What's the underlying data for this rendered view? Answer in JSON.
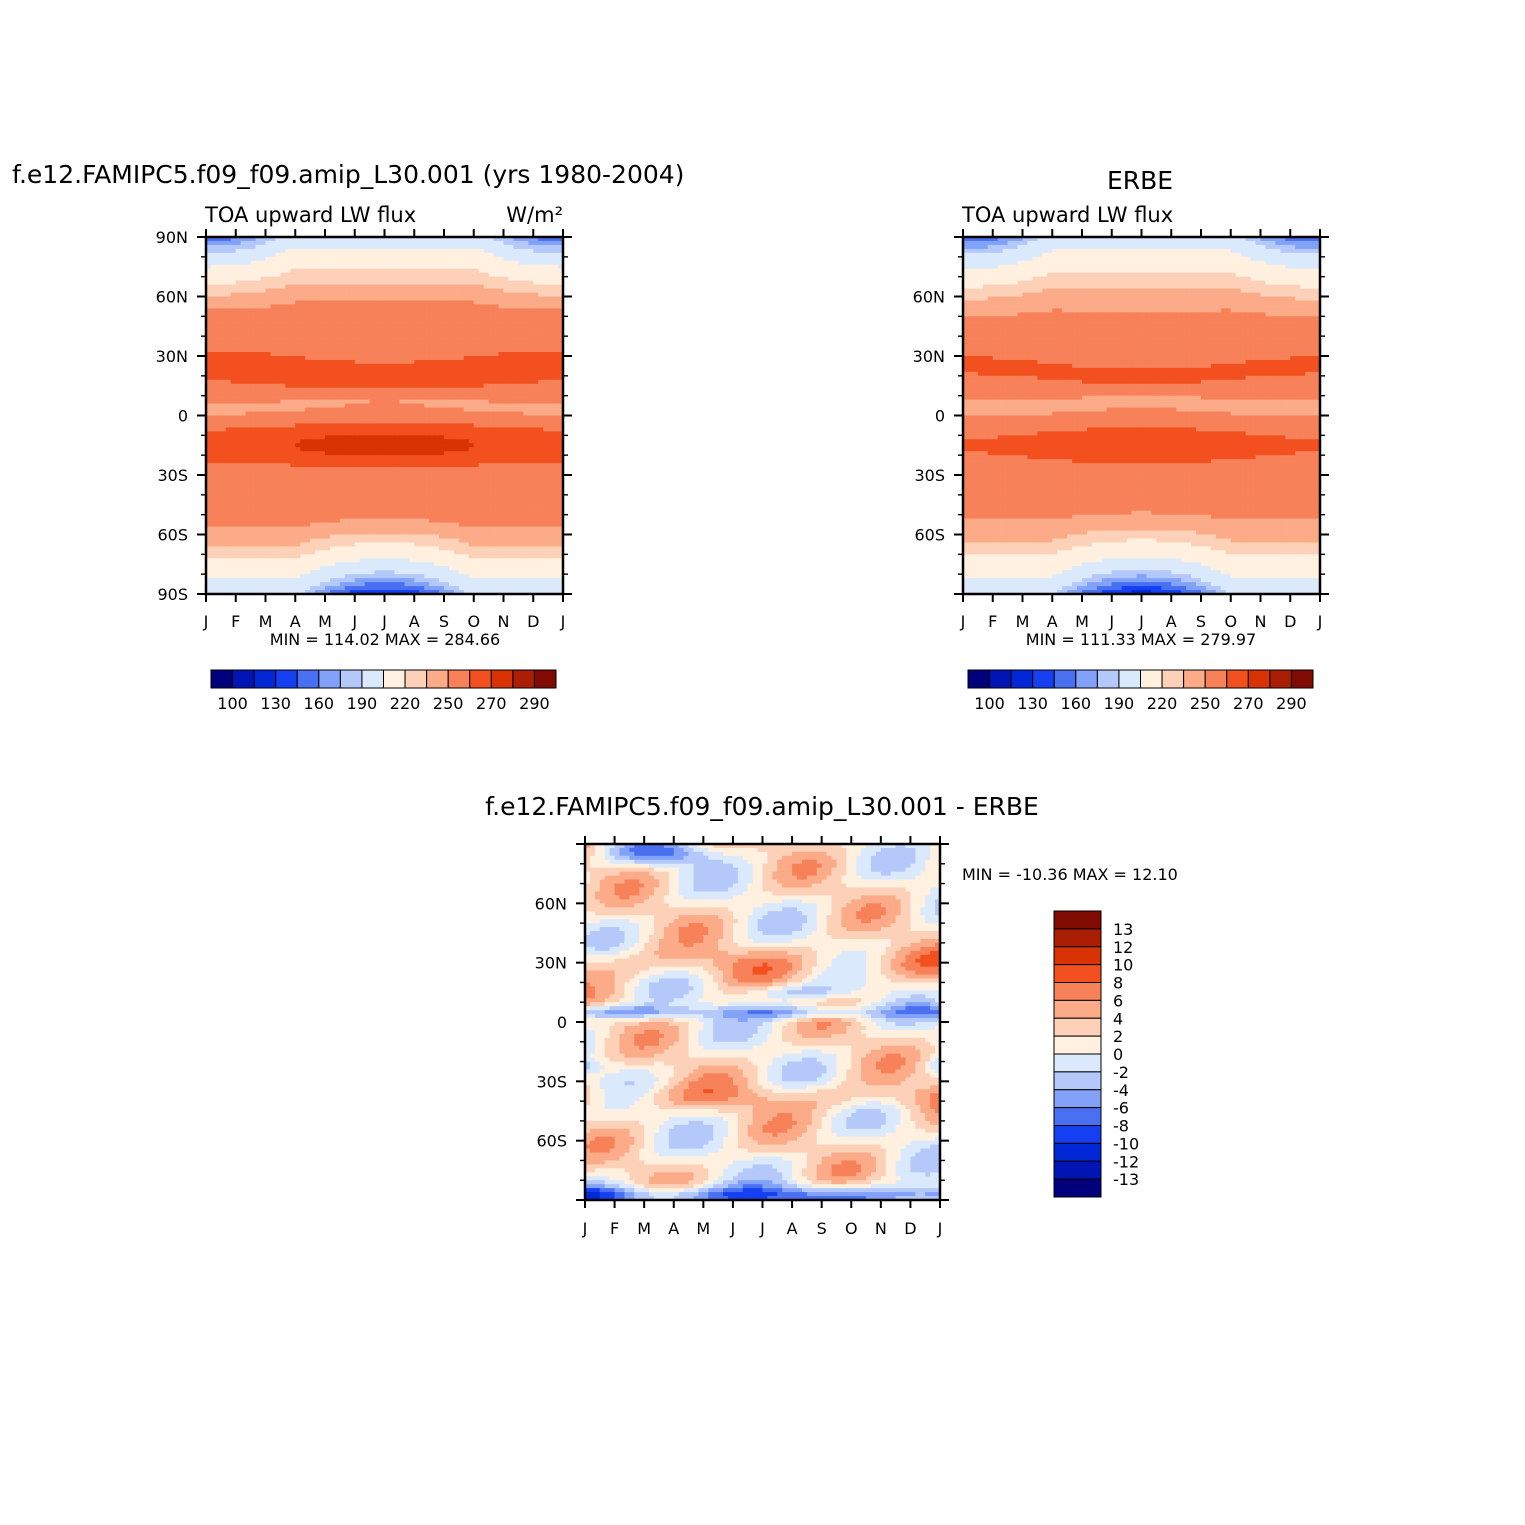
{
  "colormaps": {
    "flux_colors": [
      "#00007d",
      "#0015b3",
      "#0028d6",
      "#163ff2",
      "#4a70f2",
      "#81a2f8",
      "#b4c9fa",
      "#dbe9fd",
      "#fff0e0",
      "#fdd0b8",
      "#fbab88",
      "#f78158",
      "#f3501f",
      "#d83205",
      "#aa1e04",
      "#7f0b02"
    ],
    "diff_colors": [
      "#00007d",
      "#0015b3",
      "#0028d6",
      "#163ff2",
      "#4a70f2",
      "#81a2f8",
      "#b4c9fa",
      "#dbe9fd",
      "#fff0e0",
      "#fdd0b8",
      "#fbab88",
      "#f78158",
      "#f3501f",
      "#d83205",
      "#aa1e04",
      "#7f0b02"
    ]
  },
  "month_labels": [
    "J",
    "F",
    "M",
    "A",
    "M",
    "J",
    "J",
    "A",
    "S",
    "O",
    "N",
    "D",
    "J"
  ],
  "chart_data": [
    {
      "type": "heatmap",
      "title": "f.e12.FAMIPC5.f09_f09.amip_L30.001 (yrs 1980-2004)",
      "left_label": "TOA upward LW flux",
      "right_label": "W/m²",
      "x_axis": "month",
      "y_axis": "latitude",
      "ylim": [
        -90,
        90
      ],
      "ytick_labels": [
        "90N",
        "60N",
        "30N",
        "0",
        "30S",
        "60S",
        "90S"
      ],
      "min_label": "MIN = 114.02  MAX = 284.66",
      "min": 114.02,
      "max": 284.66,
      "colorbar": {
        "orientation": "horizontal",
        "labels": [
          "100",
          "130",
          "160",
          "190",
          "220",
          "250",
          "270",
          "290"
        ]
      }
    },
    {
      "type": "heatmap",
      "title": "ERBE",
      "left_label": "TOA upward LW flux",
      "right_label": "",
      "x_axis": "month",
      "y_axis": "latitude",
      "ylim": [
        -90,
        90
      ],
      "ytick_labels": [
        "60N",
        "30N",
        "0",
        "30S",
        "60S"
      ],
      "min_label": "MIN = 111.33  MAX = 279.97",
      "min": 111.33,
      "max": 279.97,
      "colorbar": {
        "orientation": "horizontal",
        "labels": [
          "100",
          "130",
          "160",
          "190",
          "220",
          "250",
          "270",
          "290"
        ]
      }
    },
    {
      "type": "heatmap",
      "title": "f.e12.FAMIPC5.f09_f09.amip_L30.001 - ERBE",
      "x_axis": "month",
      "y_axis": "latitude",
      "ylim": [
        -90,
        90
      ],
      "ytick_labels": [
        "60N",
        "30N",
        "0",
        "30S",
        "60S"
      ],
      "min_label": "MIN = -10.36  MAX =   12.10",
      "min": -10.36,
      "max": 12.1,
      "colorbar": {
        "orientation": "vertical",
        "labels": [
          "13",
          "12",
          "10",
          "8",
          "6",
          "4",
          "2",
          "0",
          "-2",
          "-4",
          "-6",
          "-8",
          "-10",
          "-12",
          "-13"
        ]
      }
    }
  ]
}
